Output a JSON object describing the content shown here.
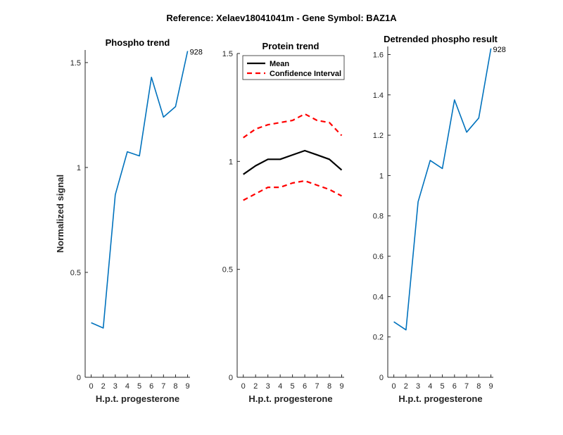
{
  "figure_title": "Reference:  Xelaev18041041m - Gene Symbol:  BAZ1A",
  "colors": {
    "line": "#0072BD",
    "mean": "#000000",
    "ci": "#FF0000",
    "axis": "#262626"
  },
  "chart_data": [
    {
      "type": "line",
      "title": "Phospho trend",
      "xlabel": "H.p.t. progesterone",
      "ylabel": "Normalized signal",
      "x": [
        0,
        1,
        2,
        3,
        4,
        5,
        6,
        7,
        8
      ],
      "xtick_labels": [
        "0",
        "2",
        "3",
        "4",
        "5",
        "6",
        "7",
        "8",
        "9"
      ],
      "xlim": [
        -0.5,
        8.2
      ],
      "ylim": [
        0,
        1.56
      ],
      "yticks": [
        0,
        0.5,
        1,
        1.5
      ],
      "ytick_labels": [
        "0",
        "0.5",
        "1",
        "1.5"
      ],
      "series": [
        {
          "values": [
            0.26,
            0.235,
            0.87,
            1.075,
            1.055,
            1.43,
            1.24,
            1.29,
            1.555
          ]
        }
      ],
      "annotation": {
        "text": "928",
        "x": 8,
        "y": 1.555
      }
    },
    {
      "type": "line",
      "title": "Protein trend",
      "xlabel": "H.p.t. progesterone",
      "ylabel": "",
      "x": [
        0,
        1,
        2,
        3,
        4,
        5,
        6,
        7,
        8
      ],
      "xtick_labels": [
        "0",
        "2",
        "3",
        "4",
        "5",
        "6",
        "7",
        "8",
        "9"
      ],
      "xlim": [
        -0.5,
        8.2
      ],
      "ylim": [
        0,
        1.5
      ],
      "yticks": [
        0,
        0.5,
        1,
        1.5
      ],
      "ytick_labels": [
        "0",
        "0.5",
        "1",
        "1.5"
      ],
      "series": [
        {
          "name": "Mean",
          "style": "solid",
          "values": [
            0.94,
            0.98,
            1.01,
            1.01,
            1.03,
            1.05,
            1.03,
            1.01,
            0.96
          ]
        },
        {
          "name": "Confidence Interval",
          "style": "dashed",
          "values": [
            1.11,
            1.15,
            1.17,
            1.18,
            1.19,
            1.22,
            1.19,
            1.18,
            1.12
          ]
        },
        {
          "name": "",
          "style": "dashed",
          "values": [
            0.82,
            0.85,
            0.88,
            0.88,
            0.9,
            0.91,
            0.89,
            0.87,
            0.84
          ]
        }
      ],
      "legend": {
        "placement": "top",
        "entries": [
          "Mean",
          "Confidence Interval"
        ]
      }
    },
    {
      "type": "line",
      "title": "Detrended phospho result",
      "xlabel": "H.p.t. progesterone",
      "ylabel": "",
      "x": [
        0,
        1,
        2,
        3,
        4,
        5,
        6,
        7,
        8
      ],
      "xtick_labels": [
        "0",
        "2",
        "3",
        "4",
        "5",
        "6",
        "7",
        "8",
        "9"
      ],
      "xlim": [
        -0.5,
        8.2
      ],
      "ylim": [
        0,
        1.64
      ],
      "yticks": [
        0,
        0.2,
        0.4,
        0.6,
        0.8,
        1,
        1.2,
        1.4,
        1.6
      ],
      "ytick_labels": [
        "0",
        "0.2",
        "0.4",
        "0.6",
        "0.8",
        "1",
        "1.2",
        "1.4",
        "1.6"
      ],
      "series": [
        {
          "values": [
            0.275,
            0.235,
            0.87,
            1.075,
            1.035,
            1.375,
            1.215,
            1.285,
            1.63
          ]
        }
      ],
      "annotation": {
        "text": "928",
        "x": 8,
        "y": 1.63
      }
    }
  ]
}
